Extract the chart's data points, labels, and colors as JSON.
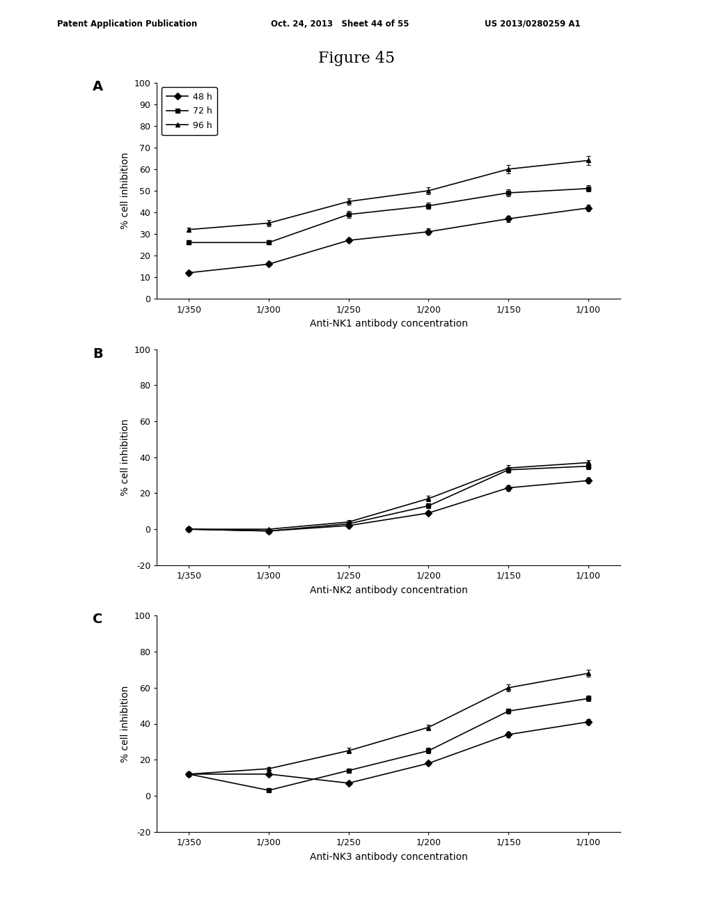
{
  "title": "Figure 45",
  "header_left": "Patent Application Publication",
  "header_center": "Oct. 24, 2013   Sheet 44 of 55",
  "header_right": "US 2013/0280259 A1",
  "x_labels": [
    "1/350",
    "1/300",
    "1/250",
    "1/200",
    "1/150",
    "1/100"
  ],
  "x_values": [
    0,
    1,
    2,
    3,
    4,
    5
  ],
  "panel_A": {
    "label": "A",
    "xlabel": "Anti-NK1 antibody concentration",
    "ylabel": "% cell inhibition",
    "ylim": [
      0,
      100
    ],
    "yticks": [
      0,
      10,
      20,
      30,
      40,
      50,
      60,
      70,
      80,
      90,
      100
    ],
    "series": [
      {
        "label": "48 h",
        "marker": "D",
        "y": [
          12,
          16,
          27,
          31,
          37,
          42
        ],
        "yerr": [
          1.0,
          1.0,
          1.0,
          1.5,
          1.5,
          1.5
        ]
      },
      {
        "label": "72 h",
        "marker": "s",
        "y": [
          26,
          26,
          39,
          43,
          49,
          51
        ],
        "yerr": [
          1.0,
          1.0,
          1.5,
          1.5,
          1.5,
          1.5
        ]
      },
      {
        "label": "96 h",
        "marker": "^",
        "y": [
          32,
          35,
          45,
          50,
          60,
          64
        ],
        "yerr": [
          1.0,
          1.5,
          1.5,
          1.5,
          2.0,
          2.0
        ]
      }
    ]
  },
  "panel_B": {
    "label": "B",
    "xlabel": "Anti-NK2 antibody concentration",
    "ylabel": "% cell inhibition",
    "ylim": [
      -20,
      100
    ],
    "yticks": [
      -20,
      0,
      20,
      40,
      60,
      80,
      100
    ],
    "series": [
      {
        "label": "48 h",
        "marker": "D",
        "y": [
          0,
          -1,
          2,
          9,
          23,
          27
        ],
        "yerr": [
          0.5,
          0.5,
          1.0,
          1.0,
          1.5,
          1.5
        ]
      },
      {
        "label": "72 h",
        "marker": "s",
        "y": [
          0,
          -1,
          3,
          13,
          33,
          35
        ],
        "yerr": [
          0.5,
          0.5,
          1.0,
          1.5,
          1.5,
          1.5
        ]
      },
      {
        "label": "96 h",
        "marker": "^",
        "y": [
          0,
          0,
          4,
          17,
          34,
          37
        ],
        "yerr": [
          0.5,
          0.5,
          1.0,
          1.5,
          1.5,
          1.5
        ]
      }
    ]
  },
  "panel_C": {
    "label": "C",
    "xlabel": "Anti-NK3 antibody concentration",
    "ylabel": "% cell inhibition",
    "ylim": [
      -20,
      100
    ],
    "yticks": [
      -20,
      0,
      20,
      40,
      60,
      80,
      100
    ],
    "series": [
      {
        "label": "48 h",
        "marker": "D",
        "y": [
          12,
          12,
          7,
          18,
          34,
          41
        ],
        "yerr": [
          1.0,
          1.0,
          1.0,
          1.0,
          1.5,
          1.5
        ]
      },
      {
        "label": "72 h",
        "marker": "s",
        "y": [
          12,
          3,
          14,
          25,
          47,
          54
        ],
        "yerr": [
          1.0,
          0.5,
          1.0,
          1.5,
          1.5,
          1.5
        ]
      },
      {
        "label": "96 h",
        "marker": "^",
        "y": [
          12,
          15,
          25,
          38,
          60,
          68
        ],
        "yerr": [
          1.0,
          1.0,
          1.5,
          1.5,
          2.0,
          2.0
        ]
      }
    ]
  },
  "line_color": "#000000",
  "bg_color": "#ffffff",
  "legend_fontsize": 9,
  "axis_fontsize": 9,
  "label_fontsize": 10,
  "title_fontsize": 16
}
